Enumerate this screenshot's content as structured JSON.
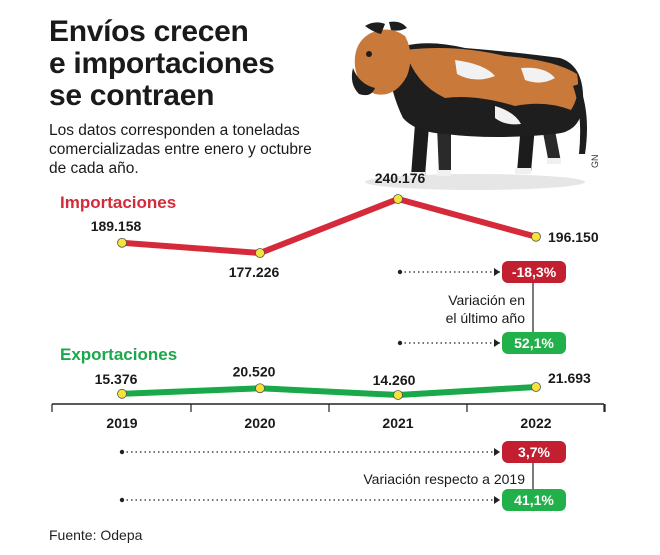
{
  "title_lines": [
    "Envíos crecen",
    "e importaciones",
    "se contraen"
  ],
  "subtitle_lines": [
    "Los datos corresponden a toneladas",
    "comercializadas entre enero y octubre",
    "de cada año."
  ],
  "credit": "GN",
  "source": "Fuente: Odepa",
  "colors": {
    "importaciones": "#d42a3a",
    "exportaciones": "#1aa84a",
    "badge_red": "#c21f30",
    "badge_green": "#22b04a",
    "marker": "#f5e33a",
    "axis": "#222222"
  },
  "chart_data": {
    "type": "line",
    "categories": [
      "2019",
      "2020",
      "2021",
      "2022"
    ],
    "series": [
      {
        "name": "Importaciones",
        "values": [
          189158,
          177226,
          240176,
          196150
        ],
        "labels": [
          "189.158",
          "177.226",
          "240.176",
          "196.150"
        ]
      },
      {
        "name": "Exportaciones",
        "values": [
          15376,
          20520,
          14260,
          21693
        ],
        "labels": [
          "15.376",
          "20.520",
          "14.260",
          "21.693"
        ]
      }
    ]
  },
  "variation_last_year": {
    "caption_lines": [
      "Variación en",
      "el último año"
    ],
    "importaciones": "-18,3%",
    "exportaciones": "52,1%"
  },
  "variation_vs_2019": {
    "caption": "Variación respecto a 2019",
    "importaciones": "3,7%",
    "exportaciones": "41,1%"
  }
}
